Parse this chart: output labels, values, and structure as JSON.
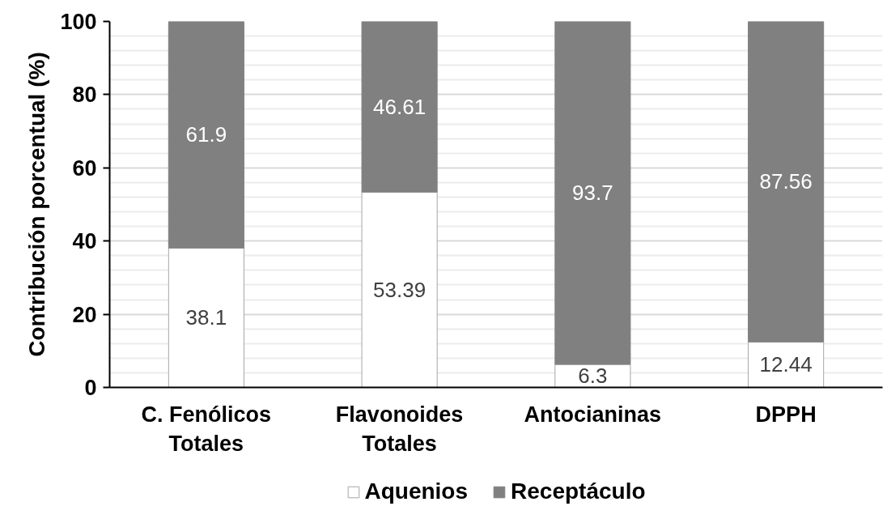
{
  "chart_data": {
    "type": "bar",
    "stacked": true,
    "ylabel": "Contribución porcentual (%)",
    "categories": [
      "C. Fenólicos Totales",
      "Flavonoides Totales",
      "Antocianinas",
      "DPPH"
    ],
    "series": [
      {
        "name": "Aquenios",
        "color": "#ffffff",
        "values": [
          38.1,
          53.39,
          6.3,
          12.44
        ]
      },
      {
        "name": "Receptáculo",
        "color": "#808080",
        "values": [
          61.9,
          46.61,
          93.7,
          87.56
        ]
      }
    ],
    "ylim": [
      0,
      100
    ],
    "yticks": [
      0,
      20,
      40,
      60,
      80,
      100
    ],
    "grid": "y",
    "legend": "bottom",
    "data_labels": true
  }
}
